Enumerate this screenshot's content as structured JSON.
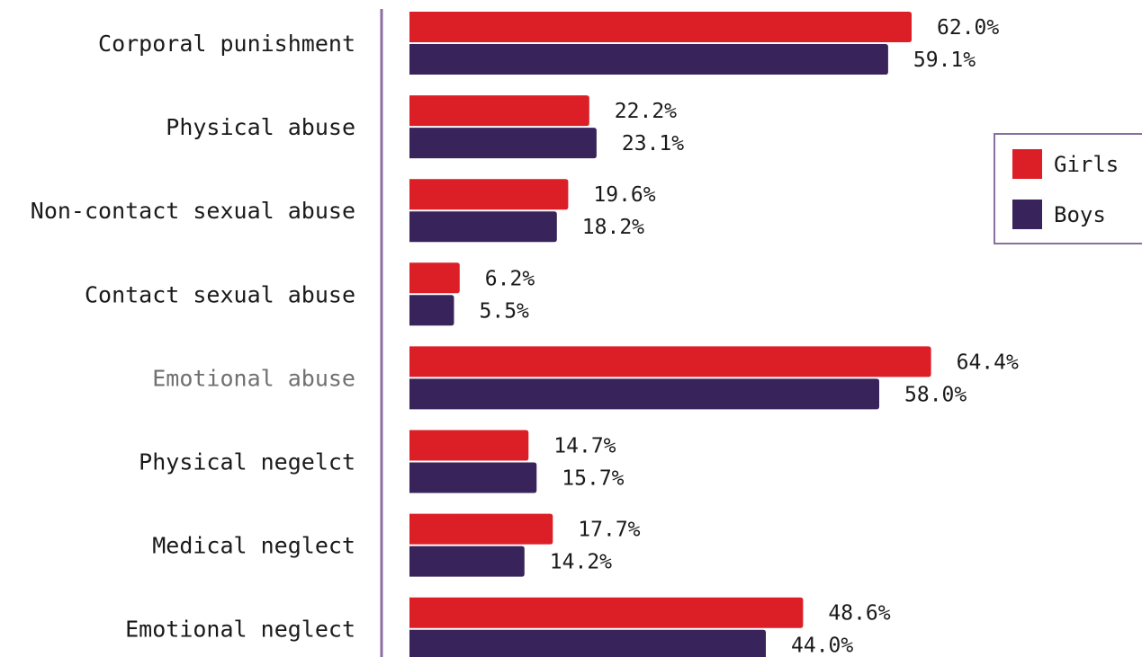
{
  "chart_data": {
    "type": "bar",
    "orientation": "horizontal",
    "categories": [
      "Corporal punishment",
      "Physical abuse",
      "Non-contact sexual abuse",
      "Contact sexual abuse",
      "Emotional abuse",
      "Physical negelct",
      "Medical neglect",
      "Emotional neglect"
    ],
    "series": [
      {
        "name": "Girls",
        "color": "#dc1f26",
        "values": [
          62.0,
          22.2,
          19.6,
          6.2,
          64.4,
          14.7,
          17.7,
          48.6
        ],
        "labels": [
          "62.0%",
          "22.2%",
          "19.6%",
          "6.2%",
          "64.4%",
          "14.7%",
          "17.7%",
          "48.6%"
        ]
      },
      {
        "name": "Boys",
        "color": "#38235a",
        "values": [
          59.1,
          23.1,
          18.2,
          5.5,
          58.0,
          15.7,
          14.2,
          44.0
        ],
        "labels": [
          "59.1%",
          "23.1%",
          "18.2%",
          "5.5%",
          "58.0%",
          "15.7%",
          "14.2%",
          "44.0%"
        ]
      }
    ],
    "xlim": [
      0,
      100
    ],
    "grid": false,
    "legend_position": "right",
    "axis_color": "#8a6fa0",
    "muted_category": "Emotional abuse"
  }
}
